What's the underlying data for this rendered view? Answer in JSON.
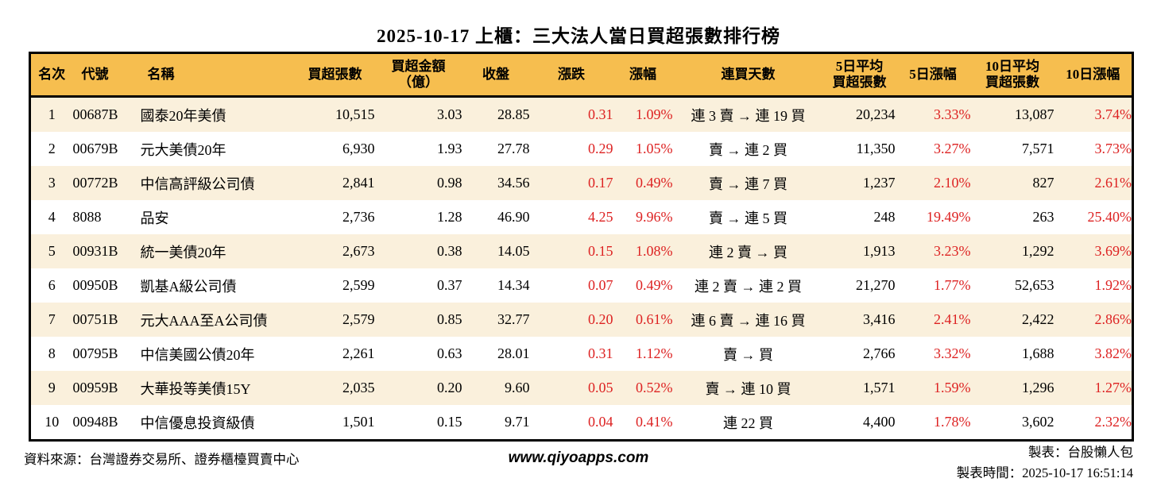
{
  "title": "2025-10-17 上櫃：三大法人當日買超張數排行榜",
  "colors": {
    "header_bg": "#F6BE4F",
    "row_alt_bg": "#FAF0DC",
    "row_bg": "#FFFFFF",
    "up_red": "#DD2222",
    "border_color": "#000000"
  },
  "table": {
    "columns": [
      {
        "key": "rank",
        "label": "名次"
      },
      {
        "key": "code",
        "label": "代號"
      },
      {
        "key": "name",
        "label": "名稱"
      },
      {
        "key": "net-buy-lots",
        "label": "買超張數"
      },
      {
        "key": "net-buy-amount",
        "label": "買超金額\n（億）"
      },
      {
        "key": "close",
        "label": "收盤"
      },
      {
        "key": "change",
        "label": "漲跌"
      },
      {
        "key": "change-pct",
        "label": "漲幅"
      },
      {
        "key": "buy-streak",
        "label": "連買天數"
      },
      {
        "key": "avg5-net-buy",
        "label": "5日平均\n買超張數"
      },
      {
        "key": "pct-5d",
        "label": "5日漲幅"
      },
      {
        "key": "avg10-net-buy",
        "label": "10日平均\n買超張數"
      },
      {
        "key": "pct-10d",
        "label": "10日漲幅"
      }
    ],
    "rows": [
      [
        "1",
        "00687B",
        "國泰20年美債",
        "10,515",
        "3.03",
        "28.85",
        "0.31",
        "1.09%",
        "連 3 賣 → 連 19 買",
        "20,234",
        "3.33%",
        "13,087",
        "3.74%"
      ],
      [
        "2",
        "00679B",
        "元大美債20年",
        "6,930",
        "1.93",
        "27.78",
        "0.29",
        "1.05%",
        "賣 → 連 2 買",
        "11,350",
        "3.27%",
        "7,571",
        "3.73%"
      ],
      [
        "3",
        "00772B",
        "中信高評級公司債",
        "2,841",
        "0.98",
        "34.56",
        "0.17",
        "0.49%",
        "賣 → 連 7 買",
        "1,237",
        "2.10%",
        "827",
        "2.61%"
      ],
      [
        "4",
        "8088",
        "品安",
        "2,736",
        "1.28",
        "46.90",
        "4.25",
        "9.96%",
        "賣 → 連 5 買",
        "248",
        "19.49%",
        "263",
        "25.40%"
      ],
      [
        "5",
        "00931B",
        "統一美債20年",
        "2,673",
        "0.38",
        "14.05",
        "0.15",
        "1.08%",
        "連 2 賣 → 買",
        "1,913",
        "3.23%",
        "1,292",
        "3.69%"
      ],
      [
        "6",
        "00950B",
        "凱基A級公司債",
        "2,599",
        "0.37",
        "14.34",
        "0.07",
        "0.49%",
        "連 2 賣 → 連 2 買",
        "21,270",
        "1.77%",
        "52,653",
        "1.92%"
      ],
      [
        "7",
        "00751B",
        "元大AAA至A公司債",
        "2,579",
        "0.85",
        "32.77",
        "0.20",
        "0.61%",
        "連 6 賣 → 連 16 買",
        "3,416",
        "2.41%",
        "2,422",
        "2.86%"
      ],
      [
        "8",
        "00795B",
        "中信美國公債20年",
        "2,261",
        "0.63",
        "28.01",
        "0.31",
        "1.12%",
        "賣 → 買",
        "2,766",
        "3.32%",
        "1,688",
        "3.82%"
      ],
      [
        "9",
        "00959B",
        "大華投等美債15Y",
        "2,035",
        "0.20",
        "9.60",
        "0.05",
        "0.52%",
        "賣 → 連 10 買",
        "1,571",
        "1.59%",
        "1,296",
        "1.27%"
      ],
      [
        "10",
        "00948B",
        "中信優息投資級債",
        "1,501",
        "0.15",
        "9.71",
        "0.04",
        "0.41%",
        "連 22 買",
        "4,400",
        "1.78%",
        "3,602",
        "2.32%"
      ]
    ]
  },
  "footer": {
    "source": "資料來源：台灣證券交易所、證券櫃檯買賣中心",
    "website": "www.qiyoapps.com",
    "author": "製表：台股懶人包",
    "generated": "製表時間：2025-10-17 16:51:14"
  }
}
